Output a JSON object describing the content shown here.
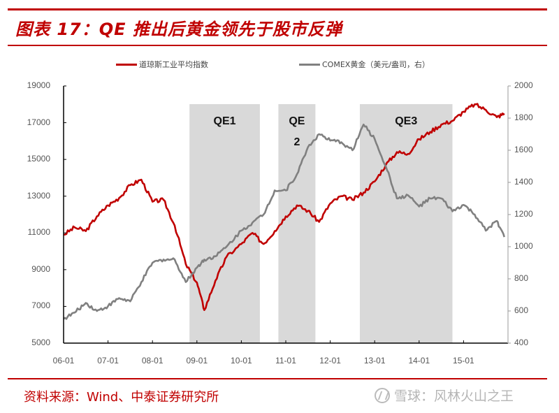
{
  "header": {
    "title": "图表 17：QE 推出后黄金领先于股市反弹"
  },
  "legend": {
    "series1": "道琼斯工业平均指数",
    "series2": "COMEX黄金（美元/盎司，右）"
  },
  "footer": {
    "source": "资料来源：Wind、中泰证券研究所",
    "watermark": "雪球：风林火山之王"
  },
  "colors": {
    "accent": "#c00000",
    "dow": "#c00000",
    "gold": "#808080",
    "shade": "#d9d9d9"
  },
  "chart_data": {
    "type": "line",
    "title": "图表 17：QE 推出后黄金领先于股市反弹",
    "xlabel": "",
    "ylabel_left": "道琼斯工业平均指数",
    "ylabel_right": "COMEX黄金（美元/盎司）",
    "ylim_left": [
      5000,
      19000
    ],
    "ylim_right": [
      400,
      2000
    ],
    "yticks_left": [
      5000,
      7000,
      9000,
      11000,
      13000,
      15000,
      17000,
      19000
    ],
    "yticks_right": [
      400,
      600,
      800,
      1000,
      1200,
      1400,
      1600,
      1800,
      2000
    ],
    "xticks": [
      "06-01",
      "07-01",
      "08-01",
      "09-01",
      "10-01",
      "11-01",
      "12-01",
      "13-01",
      "14-01",
      "15-01"
    ],
    "legend_position": "top",
    "grid": false,
    "annotations": [
      {
        "label": "QE1",
        "start": "2008-11",
        "end": "2010-06"
      },
      {
        "label": "QE 2",
        "start": "2010-11",
        "end": "2011-09"
      },
      {
        "label": "QE3",
        "start": "2012-09",
        "end": "2014-10"
      }
    ],
    "x": [
      "2006-01",
      "2006-04",
      "2006-07",
      "2006-10",
      "2007-01",
      "2007-04",
      "2007-07",
      "2007-10",
      "2008-01",
      "2008-04",
      "2008-07",
      "2008-10",
      "2009-01",
      "2009-03",
      "2009-06",
      "2009-09",
      "2010-01",
      "2010-04",
      "2010-07",
      "2010-10",
      "2011-01",
      "2011-04",
      "2011-07",
      "2011-10",
      "2012-01",
      "2012-04",
      "2012-07",
      "2012-10",
      "2013-01",
      "2013-04",
      "2013-07",
      "2013-10",
      "2014-01",
      "2014-04",
      "2014-07",
      "2014-10",
      "2015-01",
      "2015-04",
      "2015-07",
      "2015-10",
      "2015-12"
    ],
    "series": [
      {
        "name": "道琼斯工业平均指数",
        "axis": "left",
        "values": [
          10900,
          11300,
          11100,
          11900,
          12500,
          12900,
          13600,
          13900,
          12700,
          12800,
          11400,
          9300,
          8300,
          6800,
          8400,
          9700,
          10400,
          11000,
          10400,
          11100,
          11900,
          12500,
          12200,
          11600,
          12600,
          13000,
          12800,
          13200,
          13800,
          14700,
          15400,
          15300,
          16100,
          16500,
          16900,
          17100,
          17600,
          18000,
          17700,
          17300,
          17500
        ]
      },
      {
        "name": "COMEX黄金（美元/盎司，右）",
        "axis": "right",
        "values": [
          550,
          590,
          650,
          600,
          630,
          680,
          660,
          780,
          900,
          920,
          920,
          780,
          870,
          920,
          940,
          1000,
          1100,
          1150,
          1200,
          1350,
          1350,
          1450,
          1620,
          1700,
          1660,
          1650,
          1600,
          1760,
          1670,
          1500,
          1300,
          1320,
          1250,
          1300,
          1300,
          1220,
          1260,
          1200,
          1100,
          1160,
          1060
        ]
      }
    ]
  }
}
